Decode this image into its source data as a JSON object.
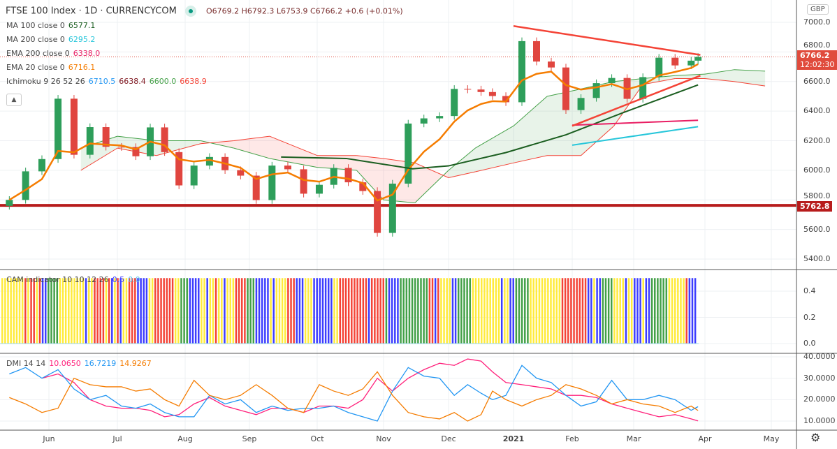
{
  "header": {
    "title": "FTSE 100 Index · 1D · CURRENCYCOM",
    "ohlc": {
      "open": "O6769.2",
      "high": "H6792.3",
      "low": "L6753.9",
      "close": "C6766.2",
      "change": "+0.6 (+0.01%)"
    }
  },
  "legends": [
    {
      "label": "MA 100 close 0",
      "values": [
        {
          "v": "6577.1",
          "color": "#1b5e20"
        }
      ]
    },
    {
      "label": "MA 200 close 0",
      "values": [
        {
          "v": "6295.2",
          "color": "#26c6da"
        }
      ]
    },
    {
      "label": "EMA 200 close 0",
      "values": [
        {
          "v": "6338.0",
          "color": "#e91e63"
        }
      ]
    },
    {
      "label": "EMA 20 close 0",
      "values": [
        {
          "v": "6716.1",
          "color": "#f57c00"
        }
      ]
    },
    {
      "label": "Ichimoku 9 26 52 26",
      "values": [
        {
          "v": "6710.5",
          "color": "#2196f3"
        },
        {
          "v": "6638.4",
          "color": "#801922"
        },
        {
          "v": "6600.0",
          "color": "#43a047"
        },
        {
          "v": "6638.9",
          "color": "#f44336"
        }
      ]
    }
  ],
  "cam_legend": {
    "label": "CAM indicator 10 10 12 26",
    "v1": "0.5",
    "v2": "0.0"
  },
  "dmi_legend": {
    "label": "DMI 14 14",
    "v1": "10.0650",
    "v2": "16.7219",
    "v3": "14.9267"
  },
  "currency": "GBP",
  "price_tag": {
    "price": "6766.2",
    "countdown": "12:02:30",
    "color": "#e04b3c"
  },
  "level_tag": {
    "price": "5762.8",
    "color": "#b71c1c"
  },
  "icons": {
    "settings": "gear-icon",
    "collapse": "chevron-up-icon",
    "status": "market-open-dot-icon"
  },
  "chart_data": [
    {
      "type": "candlestick",
      "pane": "price",
      "ylim": [
        5400,
        7000
      ],
      "yticks": [
        "7000.0",
        "6800.0",
        "6600.0",
        "6400.0",
        "6200.0",
        "6000.0",
        "5800.0",
        "5600.0",
        "5400.0"
      ],
      "xticks": [
        "Jun",
        "Jul",
        "Aug",
        "Sep",
        "Oct",
        "Nov",
        "Dec",
        "2021",
        "Feb",
        "Mar",
        "Apr",
        "May"
      ],
      "grid": true,
      "weekly_closes": [
        [
          "2020-05-15",
          5800
        ],
        [
          "2020-05-22",
          5993
        ],
        [
          "2020-05-29",
          6076
        ],
        [
          "2020-06-05",
          6484
        ],
        [
          "2020-06-12",
          6105
        ],
        [
          "2020-06-19",
          6292
        ],
        [
          "2020-06-26",
          6159
        ],
        [
          "2020-07-03",
          6157
        ],
        [
          "2020-07-10",
          6095
        ],
        [
          "2020-07-17",
          6290
        ],
        [
          "2020-07-24",
          6123
        ],
        [
          "2020-07-31",
          5898
        ],
        [
          "2020-08-07",
          6032
        ],
        [
          "2020-08-14",
          6090
        ],
        [
          "2020-08-21",
          6001
        ],
        [
          "2020-08-28",
          5964
        ],
        [
          "2020-09-04",
          5799
        ],
        [
          "2020-09-11",
          6032
        ],
        [
          "2020-09-18",
          6007
        ],
        [
          "2020-09-25",
          5842
        ],
        [
          "2020-10-02",
          5902
        ],
        [
          "2020-10-09",
          6016
        ],
        [
          "2020-10-16",
          5919
        ],
        [
          "2020-10-23",
          5860
        ],
        [
          "2020-10-30",
          5577
        ],
        [
          "2020-11-06",
          5910
        ],
        [
          "2020-11-13",
          6316
        ],
        [
          "2020-11-20",
          6351
        ],
        [
          "2020-11-27",
          6367
        ],
        [
          "2020-12-04",
          6550
        ],
        [
          "2020-12-11",
          6546
        ],
        [
          "2020-12-18",
          6529
        ],
        [
          "2020-12-24",
          6502
        ],
        [
          "2020-12-31",
          6460
        ],
        [
          "2021-01-08",
          6873
        ],
        [
          "2021-01-15",
          6735
        ],
        [
          "2021-01-22",
          6695
        ],
        [
          "2021-01-29",
          6407
        ],
        [
          "2021-02-05",
          6489
        ],
        [
          "2021-02-12",
          6589
        ],
        [
          "2021-02-19",
          6624
        ],
        [
          "2021-02-26",
          6483
        ],
        [
          "2021-03-05",
          6630
        ],
        [
          "2021-03-12",
          6761
        ],
        [
          "2021-03-19",
          6709
        ],
        [
          "2021-03-26",
          6741
        ],
        [
          "2021-03-29",
          6766.2
        ]
      ],
      "last": {
        "open": 6769.2,
        "high": 6792.3,
        "low": 6753.9,
        "close": 6766.2
      },
      "overlays": {
        "ma100": {
          "color": "#1b5e20",
          "points": [
            [
              "2020-09-15",
              6090
            ],
            [
              "2020-10-15",
              6080
            ],
            [
              "2020-11-15",
              6010
            ],
            [
              "2020-12-01",
              6030
            ],
            [
              "2020-12-31",
              6120
            ],
            [
              "2021-01-29",
              6240
            ],
            [
              "2021-02-26",
              6400
            ],
            [
              "2021-03-29",
              6577.1
            ]
          ]
        },
        "ma200": {
          "color": "#26c6da",
          "points": [
            [
              "2021-02-01",
              6170
            ],
            [
              "2021-03-29",
              6295.2
            ]
          ]
        },
        "ema200": {
          "color": "#e91e63",
          "points": [
            [
              "2021-02-01",
              6305
            ],
            [
              "2021-03-29",
              6338.0
            ]
          ]
        },
        "ema20": {
          "color": "#f57c00"
        },
        "ichimoku_cloud": {
          "up_color": "#43a047",
          "down_color": "#f44336",
          "points": [
            [
              "2020-06-15",
              6150,
              6000
            ],
            [
              "2020-07-01",
              6230,
              6150
            ],
            [
              "2020-07-20",
              6200,
              6100
            ],
            [
              "2020-08-10",
              6200,
              6180
            ],
            [
              "2020-08-25",
              6150,
              6200
            ],
            [
              "2020-09-10",
              6080,
              6230
            ],
            [
              "2020-10-01",
              6020,
              6100
            ],
            [
              "2020-10-20",
              6000,
              6100
            ],
            [
              "2020-11-02",
              5800,
              6080
            ],
            [
              "2020-11-16",
              5780,
              6050
            ],
            [
              "2020-12-01",
              6000,
              5950
            ],
            [
              "2020-12-15",
              6150,
              5990
            ],
            [
              "2021-01-04",
              6300,
              6050
            ],
            [
              "2021-01-20",
              6500,
              6100
            ],
            [
              "2021-02-05",
              6550,
              6100
            ],
            [
              "2021-02-20",
              6600,
              6300
            ],
            [
              "2021-03-05",
              6620,
              6580
            ],
            [
              "2021-03-19",
              6640,
              6620
            ],
            [
              "2021-04-01",
              6650,
              6620
            ],
            [
              "2021-04-15",
              6680,
              6600
            ],
            [
              "2021-04-30",
              6670,
              6570
            ]
          ]
        },
        "trendlines": [
          {
            "color": "#f44336",
            "from": [
              "2021-01-04",
              6975
            ],
            "to": [
              "2021-03-30",
              6780
            ]
          },
          {
            "color": "#f44336",
            "from": [
              "2021-02-01",
              6300
            ],
            "to": [
              "2021-03-30",
              6640
            ]
          }
        ],
        "horizontal_level": {
          "value": 5762.8,
          "color": "#b71c1c"
        },
        "last_price_line": {
          "value": 6766.2,
          "color": "#e04b3c"
        }
      }
    },
    {
      "type": "bar",
      "pane": "cam",
      "ylim": [
        0,
        0.5
      ],
      "yticks": [
        "0.4",
        "0.2",
        "0.0"
      ],
      "bar_value": 0.5,
      "colors": {
        "y": "#ffeb3b",
        "r": "#f44336",
        "g": "#43a047",
        "b": "#3d3dff"
      },
      "sequence": "yyyyyyyyryrryrbbggggyyyyyyyyybyyrrrryrbyrbyyrrrbbbbyyrrrrrrryygggbbbbyybyyryybyyyrrrrgggbbbbbybyyyyrrrbbbyyybbbbbbbyyrrrrrrrrrrbrrrrrgbbbbggggggggggrrbryyyybbgggggyyyyyyyyyybyybbgggggyyyyyyyyyyyrrrrrrrrrbbybbggggyyyybyybbbybbggggggyyyyyyrbbb"
    },
    {
      "type": "line",
      "pane": "dmi",
      "ylim": [
        5,
        42
      ],
      "yticks": [
        "40.0000",
        "30.0000",
        "20.0000",
        "10.0000"
      ],
      "dates": [
        "2020-05-15",
        "2020-05-22",
        "2020-05-29",
        "2020-06-05",
        "2020-06-12",
        "2020-06-19",
        "2020-06-26",
        "2020-07-03",
        "2020-07-10",
        "2020-07-17",
        "2020-07-24",
        "2020-07-31",
        "2020-08-07",
        "2020-08-14",
        "2020-08-21",
        "2020-08-28",
        "2020-09-04",
        "2020-09-11",
        "2020-09-18",
        "2020-09-25",
        "2020-10-02",
        "2020-10-09",
        "2020-10-16",
        "2020-10-23",
        "2020-10-30",
        "2020-11-06",
        "2020-11-13",
        "2020-11-20",
        "2020-11-27",
        "2020-12-04",
        "2020-12-11",
        "2020-12-18",
        "2020-12-24",
        "2020-12-31",
        "2021-01-08",
        "2021-01-15",
        "2021-01-22",
        "2021-01-29",
        "2021-02-05",
        "2021-02-12",
        "2021-02-19",
        "2021-02-26",
        "2021-03-05",
        "2021-03-12",
        "2021-03-19",
        "2021-03-26",
        "2021-03-29"
      ],
      "series": [
        {
          "color": "#ff1f7a",
          "values": [
            null,
            null,
            30,
            32,
            28,
            20,
            17,
            16,
            16,
            15,
            12,
            13,
            18,
            21,
            17,
            15,
            13,
            16,
            16,
            14,
            17,
            17,
            16,
            20,
            30,
            24,
            30,
            34,
            37,
            36,
            39,
            38,
            33,
            28,
            27,
            26,
            25,
            22,
            22,
            21,
            18,
            16,
            14,
            12,
            13,
            11,
            10.065
          ]
        },
        {
          "color": "#2196f3",
          "values": [
            32,
            35,
            30,
            34,
            25,
            20,
            22,
            17,
            16,
            18,
            14,
            12,
            12,
            22,
            18,
            20,
            14,
            17,
            15,
            16,
            16,
            17,
            14,
            12,
            10,
            24,
            35,
            31,
            30,
            22,
            27,
            23,
            20,
            22,
            36,
            30,
            28,
            22,
            17,
            19,
            29,
            20,
            20,
            22,
            20,
            15,
            16.7219
          ]
        },
        {
          "color": "#f57c00",
          "values": [
            21,
            18,
            14,
            16,
            30,
            27,
            26,
            26,
            24,
            25,
            20,
            17,
            29,
            22,
            20,
            22,
            27,
            22,
            16,
            14,
            27,
            24,
            22,
            25,
            33,
            22,
            14,
            12,
            11,
            14,
            10,
            13,
            24,
            20,
            17,
            20,
            22,
            27,
            25,
            22,
            18,
            20,
            18,
            17,
            14,
            17,
            14.9267
          ]
        }
      ]
    }
  ]
}
